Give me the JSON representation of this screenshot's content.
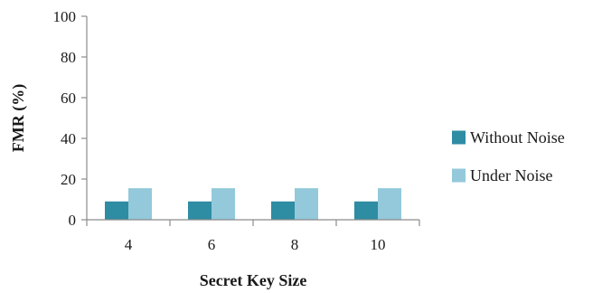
{
  "chart_data": {
    "type": "bar",
    "categories": [
      "4",
      "6",
      "8",
      "10"
    ],
    "series": [
      {
        "name": "Without Noise",
        "values": [
          9,
          9,
          9,
          9
        ],
        "color": "#2e8ca3"
      },
      {
        "name": "Under Noise",
        "values": [
          15.5,
          15.5,
          15.5,
          15.5
        ],
        "color": "#93c9da"
      }
    ],
    "xlabel": "Secret Key Size",
    "ylabel": "FMR  (%)",
    "ylim": [
      0,
      100
    ],
    "yticks": [
      0,
      20,
      40,
      60,
      80,
      100
    ],
    "grid": false,
    "legend_position": "right"
  }
}
